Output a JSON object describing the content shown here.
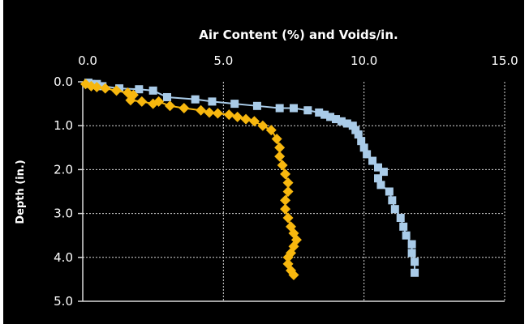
{
  "chart_data": {
    "type": "scatter",
    "title": "Air Content (%) and Voids/in.",
    "ylabel": "Depth (in.)",
    "x_ticks": [
      "0.0",
      "5.0",
      "10.0",
      "15.0"
    ],
    "y_ticks": [
      "0.0",
      "1.0",
      "2.0",
      "3.0",
      "4.0",
      "5.0"
    ],
    "xlim": [
      0,
      15
    ],
    "ylim": [
      0,
      5
    ],
    "y_inverted": true,
    "grid": true,
    "series": [
      {
        "color": "#a9cbe8",
        "marker": "square",
        "points": [
          [
            0.2,
            0.02
          ],
          [
            0.3,
            0.05
          ],
          [
            0.5,
            0.05
          ],
          [
            0.7,
            0.1
          ],
          [
            1.3,
            0.15
          ],
          [
            2.0,
            0.17
          ],
          [
            2.5,
            0.2
          ],
          [
            3.0,
            0.35
          ],
          [
            4.0,
            0.4
          ],
          [
            4.6,
            0.45
          ],
          [
            5.4,
            0.5
          ],
          [
            6.2,
            0.55
          ],
          [
            7.0,
            0.6
          ],
          [
            7.5,
            0.6
          ],
          [
            8.0,
            0.65
          ],
          [
            8.4,
            0.7
          ],
          [
            8.6,
            0.75
          ],
          [
            8.8,
            0.8
          ],
          [
            9.0,
            0.85
          ],
          [
            9.2,
            0.9
          ],
          [
            9.4,
            0.95
          ],
          [
            9.6,
            1.0
          ],
          [
            9.7,
            1.1
          ],
          [
            9.8,
            1.2
          ],
          [
            9.9,
            1.35
          ],
          [
            10.0,
            1.5
          ],
          [
            10.1,
            1.65
          ],
          [
            10.3,
            1.8
          ],
          [
            10.5,
            1.95
          ],
          [
            10.7,
            2.05
          ],
          [
            10.5,
            2.2
          ],
          [
            10.6,
            2.35
          ],
          [
            10.9,
            2.5
          ],
          [
            11.0,
            2.7
          ],
          [
            11.1,
            2.9
          ],
          [
            11.3,
            3.1
          ],
          [
            11.4,
            3.3
          ],
          [
            11.5,
            3.5
          ],
          [
            11.7,
            3.7
          ],
          [
            11.7,
            3.9
          ],
          [
            11.8,
            4.1
          ],
          [
            11.8,
            4.35
          ]
        ]
      },
      {
        "color": "#f7b70e",
        "marker": "diamond",
        "points": [
          [
            0.1,
            0.05
          ],
          [
            0.3,
            0.1
          ],
          [
            0.5,
            0.12
          ],
          [
            0.8,
            0.15
          ],
          [
            1.2,
            0.2
          ],
          [
            1.6,
            0.25
          ],
          [
            1.8,
            0.3
          ],
          [
            1.7,
            0.42
          ],
          [
            2.1,
            0.45
          ],
          [
            2.5,
            0.5
          ],
          [
            2.7,
            0.45
          ],
          [
            3.1,
            0.55
          ],
          [
            3.6,
            0.6
          ],
          [
            4.2,
            0.65
          ],
          [
            4.5,
            0.7
          ],
          [
            4.8,
            0.72
          ],
          [
            5.2,
            0.75
          ],
          [
            5.5,
            0.8
          ],
          [
            5.8,
            0.85
          ],
          [
            6.1,
            0.9
          ],
          [
            6.4,
            1.0
          ],
          [
            6.7,
            1.1
          ],
          [
            6.9,
            1.3
          ],
          [
            7.0,
            1.5
          ],
          [
            7.0,
            1.7
          ],
          [
            7.1,
            1.9
          ],
          [
            7.2,
            2.1
          ],
          [
            7.3,
            2.3
          ],
          [
            7.3,
            2.5
          ],
          [
            7.2,
            2.7
          ],
          [
            7.2,
            2.9
          ],
          [
            7.3,
            3.1
          ],
          [
            7.4,
            3.3
          ],
          [
            7.5,
            3.45
          ],
          [
            7.6,
            3.6
          ],
          [
            7.5,
            3.75
          ],
          [
            7.4,
            3.9
          ],
          [
            7.3,
            4.0
          ],
          [
            7.3,
            4.15
          ],
          [
            7.4,
            4.3
          ],
          [
            7.5,
            4.4
          ]
        ]
      }
    ]
  },
  "colors": {
    "background": "#000000",
    "grid": "#d9d9d9",
    "text": "#ffffff"
  }
}
